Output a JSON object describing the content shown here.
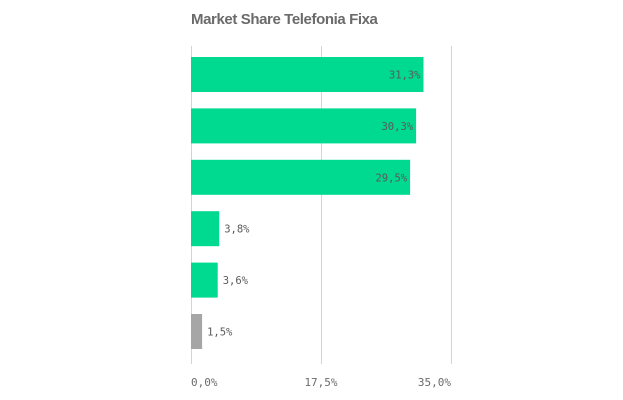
{
  "chart_data": {
    "type": "bar",
    "orientation": "horizontal",
    "title": "Market Share Telefonia Fixa",
    "xlabel": "",
    "ylabel": "",
    "xlim": [
      0,
      35
    ],
    "ticks": [
      {
        "value": 0,
        "label": "0,0%"
      },
      {
        "value": 17.5,
        "label": "17,5%"
      },
      {
        "value": 35,
        "label": "35,0%"
      }
    ],
    "grid": true,
    "legend": "none",
    "bars": [
      {
        "value": 31.3,
        "label": "31,3%",
        "color": "#00d990"
      },
      {
        "value": 30.3,
        "label": "30,3%",
        "color": "#00d990"
      },
      {
        "value": 29.5,
        "label": "29,5%",
        "color": "#00d990"
      },
      {
        "value": 3.8,
        "label": "3,8%",
        "color": "#00d990"
      },
      {
        "value": 3.6,
        "label": "3,6%",
        "color": "#00d990"
      },
      {
        "value": 1.5,
        "label": "1,5%",
        "color": "#a6a6a6"
      }
    ]
  }
}
